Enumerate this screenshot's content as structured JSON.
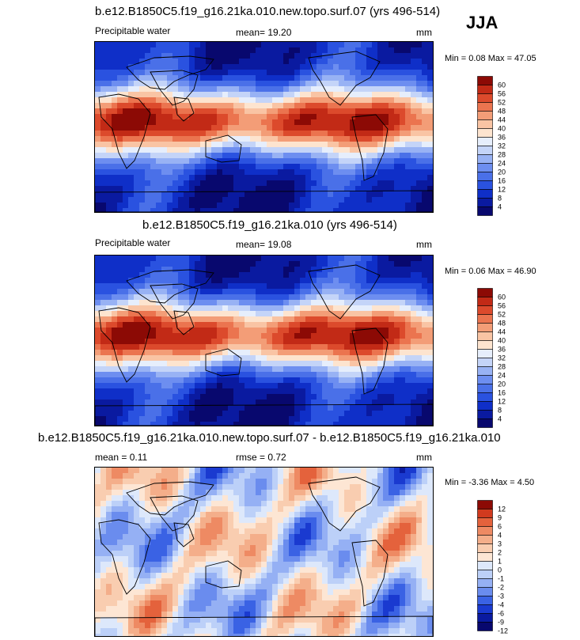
{
  "season": "JJA",
  "panels": [
    {
      "title": "b.e12.B1850C5.f19_g16.21ka.010.new.topo.surf.07 (yrs 496-514)",
      "variable": "Precipitable water",
      "mean_text": "mean=  19.20",
      "units": "mm",
      "minmax_text": "Min =   0.08 Max =  47.05"
    },
    {
      "title": "b.e12.B1850C5.f19_g16.21ka.010 (yrs 496-514)",
      "variable": "Precipitable water",
      "mean_text": "mean=  19.08",
      "units": "mm",
      "minmax_text": "Min =   0.06 Max =  46.90"
    },
    {
      "title": "b.e12.B1850C5.f19_g16.21ka.010.new.topo.surf.07 - b.e12.B1850C5.f19_g16.21ka.010",
      "variable": "",
      "mean_text": "mean =   0.11",
      "rmse_text": "rmse =   0.72",
      "units": "mm",
      "minmax_text": "Min =  -3.36 Max =   4.50"
    }
  ],
  "chart_data": [
    {
      "type": "heatmap",
      "title": "b.e12.B1850C5.f19_g16.21ka.010.new.topo.surf.07 (yrs 496-514)",
      "variable": "Precipitable water",
      "units": "mm",
      "mean": 19.2,
      "min": 0.08,
      "max": 47.05,
      "colorbar_levels": [
        "4",
        "8",
        "12",
        "16",
        "20",
        "24",
        "28",
        "32",
        "36",
        "40",
        "44",
        "48",
        "52",
        "56",
        "60"
      ],
      "colors": [
        "#08086e",
        "#0a1aa0",
        "#0f2fc8",
        "#2a52e0",
        "#4a70e8",
        "#6d8ef0",
        "#98b2f4",
        "#c4d4f8",
        "#e6eefc",
        "#fde4cf",
        "#f9c4a4",
        "#f39d77",
        "#eb744f",
        "#dc4a2c",
        "#c22a16",
        "#8c0a05"
      ]
    },
    {
      "type": "heatmap",
      "title": "b.e12.B1850C5.f19_g16.21ka.010 (yrs 496-514)",
      "variable": "Precipitable water",
      "units": "mm",
      "mean": 19.08,
      "min": 0.06,
      "max": 46.9,
      "colorbar_levels": [
        "4",
        "8",
        "12",
        "16",
        "20",
        "24",
        "28",
        "32",
        "36",
        "40",
        "44",
        "48",
        "52",
        "56",
        "60"
      ],
      "colors": [
        "#08086e",
        "#0a1aa0",
        "#0f2fc8",
        "#2a52e0",
        "#4a70e8",
        "#6d8ef0",
        "#98b2f4",
        "#c4d4f8",
        "#e6eefc",
        "#fde4cf",
        "#f9c4a4",
        "#f39d77",
        "#eb744f",
        "#dc4a2c",
        "#c22a16",
        "#8c0a05"
      ]
    },
    {
      "type": "heatmap",
      "title": "b.e12.B1850C5.f19_g16.21ka.010.new.topo.surf.07 - b.e12.B1850C5.f19_g16.21ka.010",
      "units": "mm",
      "mean": 0.11,
      "rmse": 0.72,
      "min": -3.36,
      "max": 4.5,
      "colorbar_levels": [
        "-12",
        "-9",
        "-6",
        "-4",
        "-3",
        "-2",
        "-1",
        "0",
        "1",
        "2",
        "3",
        "4",
        "6",
        "9",
        "12"
      ],
      "colors": [
        "#08086e",
        "#0a1aa0",
        "#1a3ad0",
        "#3a62e4",
        "#6a8cee",
        "#95b0f4",
        "#bcd0f8",
        "#dde8fb",
        "#fde6d4",
        "#f9cdb0",
        "#f4ae8a",
        "#ee8a63",
        "#e4623c",
        "#d13a1e",
        "#8c0a05"
      ]
    }
  ]
}
